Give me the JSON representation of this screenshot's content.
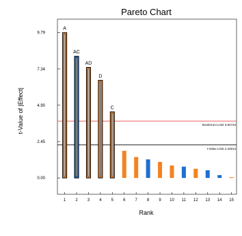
{
  "chart_data": {
    "type": "bar",
    "title": "Pareto Chart",
    "xlabel": "Rank",
    "ylabel": "t-Value of |Effect|",
    "categories": [
      "1",
      "2",
      "3",
      "4",
      "5",
      "6",
      "7",
      "8",
      "9",
      "10",
      "11",
      "12",
      "13",
      "14",
      "15"
    ],
    "bar_labels": [
      "A",
      "AC",
      "AD",
      "D",
      "C",
      "",
      "",
      "",
      "",
      "",
      "",
      "",
      "",
      "",
      ""
    ],
    "values": [
      9.79,
      8.2,
      7.45,
      6.58,
      4.45,
      1.83,
      1.41,
      1.25,
      1.08,
      0.84,
      0.76,
      0.62,
      0.52,
      0.19,
      0.05
    ],
    "effect_sign": [
      "positive",
      "negative",
      "positive",
      "positive",
      "positive",
      "positive",
      "positive",
      "negative",
      "positive",
      "positive",
      "negative",
      "positive",
      "negative",
      "negative",
      "positive"
    ],
    "y_ticks": [
      "0.00",
      "2.45",
      "4.90",
      "7.34",
      "9.79"
    ],
    "y_tick_values": [
      0,
      2.45,
      4.9,
      7.34,
      9.79
    ],
    "ylim": [
      -1.1,
      10.7
    ],
    "reference_lines": [
      {
        "label": "Bonferroni Limit 3.82734",
        "value": 3.82734,
        "color": "#e84a4a"
      },
      {
        "label": "t-Value Limit 2.22814",
        "value": 2.22814,
        "color": "#000000"
      }
    ],
    "colors": {
      "positive": "#f58220",
      "negative": "#1f6fd1",
      "outline": "#000000"
    },
    "grid": false,
    "legend": "none"
  }
}
